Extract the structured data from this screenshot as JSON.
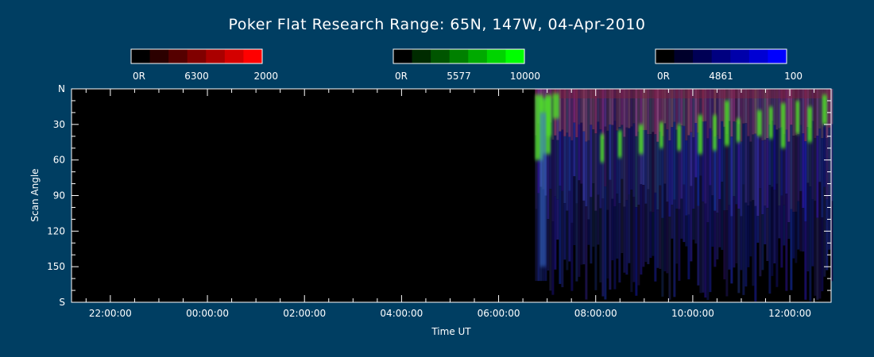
{
  "chart_data": {
    "type": "heatmap",
    "title": "Poker Flat Research Range: 65N, 147W, 04-Apr-2010",
    "xlabel": "Time UT",
    "ylabel": "Scan Angle",
    "x_range_hours": [
      21.2,
      36.85
    ],
    "x_tick_values_hours": [
      22,
      24,
      26,
      28,
      30,
      32,
      34,
      36
    ],
    "x_tick_labels": [
      "22:00:00",
      "00:00:00",
      "02:00:00",
      "04:00:00",
      "06:00:00",
      "08:00:00",
      "10:00:00",
      "12:00:00"
    ],
    "y_range_deg": [
      0,
      180
    ],
    "y_tick_values_deg": [
      0,
      30,
      60,
      90,
      120,
      150,
      180
    ],
    "y_tick_labels": [
      "N",
      "30",
      "60",
      "90",
      "120",
      "150",
      "S"
    ],
    "data_start_hours": 30.75,
    "colorbars": [
      {
        "min_label": "0R",
        "wavelength": "6300",
        "max_label": "2000",
        "color": "#ff0000",
        "levels": [
          "#000000",
          "#2b0000",
          "#550000",
          "#800000",
          "#aa0000",
          "#d40000",
          "#ff0000"
        ]
      },
      {
        "min_label": "0R",
        "wavelength": "5577",
        "max_label": "10000",
        "color": "#00ff00",
        "levels": [
          "#000000",
          "#002b00",
          "#005500",
          "#008000",
          "#00aa00",
          "#00d400",
          "#00ff00"
        ]
      },
      {
        "min_label": "0R",
        "wavelength": "4861",
        "max_label": "100",
        "color": "#0000ff",
        "levels": [
          "#000000",
          "#00002b",
          "#000055",
          "#000080",
          "#0000aa",
          "#0000d4",
          "#0000ff"
        ]
      }
    ]
  },
  "colors": {
    "background": "#003e62",
    "plot_background": "#000000",
    "axis": "#ffffff"
  }
}
